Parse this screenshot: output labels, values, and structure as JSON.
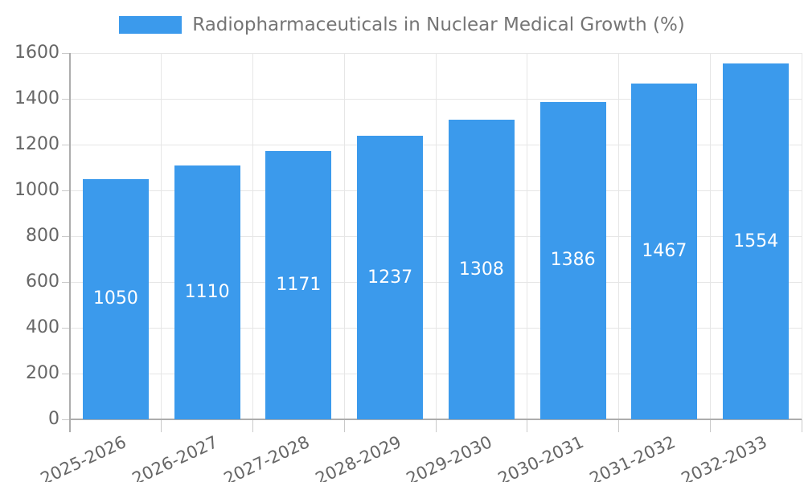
{
  "chart_data": {
    "type": "bar",
    "title": "Radiopharmaceuticals in Nuclear Medical Growth (%)",
    "legend": {
      "position": "top",
      "label": "Radiopharmaceuticals in Nuclear Medical Growth (%)"
    },
    "categories": [
      "2025-2026",
      "2026-2027",
      "2027-2028",
      "2028-2029",
      "2029-2030",
      "2030-2031",
      "2031-2032",
      "2032-2033"
    ],
    "values": [
      1050,
      1110,
      1171,
      1237,
      1308,
      1386,
      1467,
      1554
    ],
    "value_labels": [
      "1050",
      "1110",
      "1171",
      "1237",
      "1308",
      "1386",
      "1467",
      "1554"
    ],
    "yticks": [
      0,
      200,
      400,
      600,
      800,
      1000,
      1200,
      1400,
      1600
    ],
    "ylim": [
      0,
      1600
    ],
    "xlabel": "",
    "ylabel": "",
    "grid": "both",
    "x_label_rotation_deg": -25,
    "colors": {
      "bar": "#3b9aec",
      "value_label": "#ffffff",
      "legend_text": "#757575",
      "tick_text": "#666666",
      "gridline": "#e6e6e6",
      "axis": "#adadad",
      "background": "#ffffff"
    }
  }
}
